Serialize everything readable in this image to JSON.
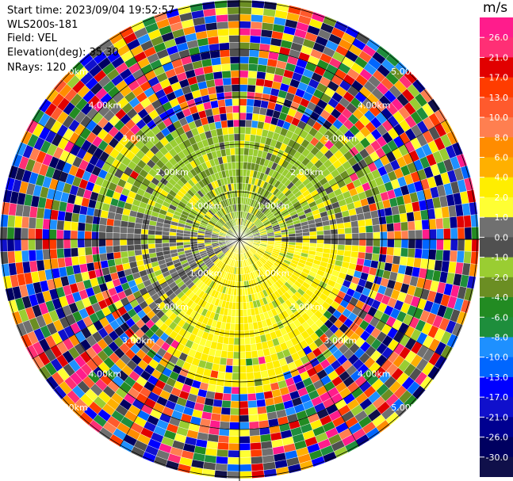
{
  "info": {
    "start_time": "Start time: 2023/09/04 19:52:57",
    "instrument": "WLS200s-181",
    "field": "Field: VEL",
    "elevation": "Elevation(deg): 35.30",
    "nrays": "NRays: 120"
  },
  "chart_data": {
    "type": "heatmap",
    "projection": "polar-ppi",
    "field": "VEL",
    "unit": "m/s",
    "nrays": 120,
    "range_rings_km": [
      1,
      2,
      3,
      4,
      5
    ],
    "ring_labels": [
      "1.00km",
      "2.00km",
      "3.00km",
      "4.00km",
      "5.00km"
    ],
    "colorbar": {
      "unit": "m/s",
      "ticks": [
        "26.0",
        "21.0",
        "17.0",
        "13.0",
        "10.0",
        "8.0",
        "6.0",
        "4.0",
        "2.0",
        "1.0",
        "0.0",
        "-1.0",
        "-2.0",
        "-4.0",
        "-6.0",
        "-8.0",
        "-10.0",
        "-13.0",
        "-17.0",
        "-21.0",
        "-26.0",
        "-30.0"
      ],
      "colors": [
        "#ff1c8c",
        "#ff2f75",
        "#e10000",
        "#ff3c00",
        "#ff5a2d",
        "#ff7f50",
        "#ff8c00",
        "#ffb000",
        "#ffee00",
        "#ffff33",
        "#707070",
        "#505050",
        "#9acd32",
        "#6b8e23",
        "#228b22",
        "#1e8e3c",
        "#1e90ff",
        "#0066ff",
        "#0000ff",
        "#1010cc",
        "#000090",
        "#000060",
        "#10104a"
      ]
    }
  }
}
